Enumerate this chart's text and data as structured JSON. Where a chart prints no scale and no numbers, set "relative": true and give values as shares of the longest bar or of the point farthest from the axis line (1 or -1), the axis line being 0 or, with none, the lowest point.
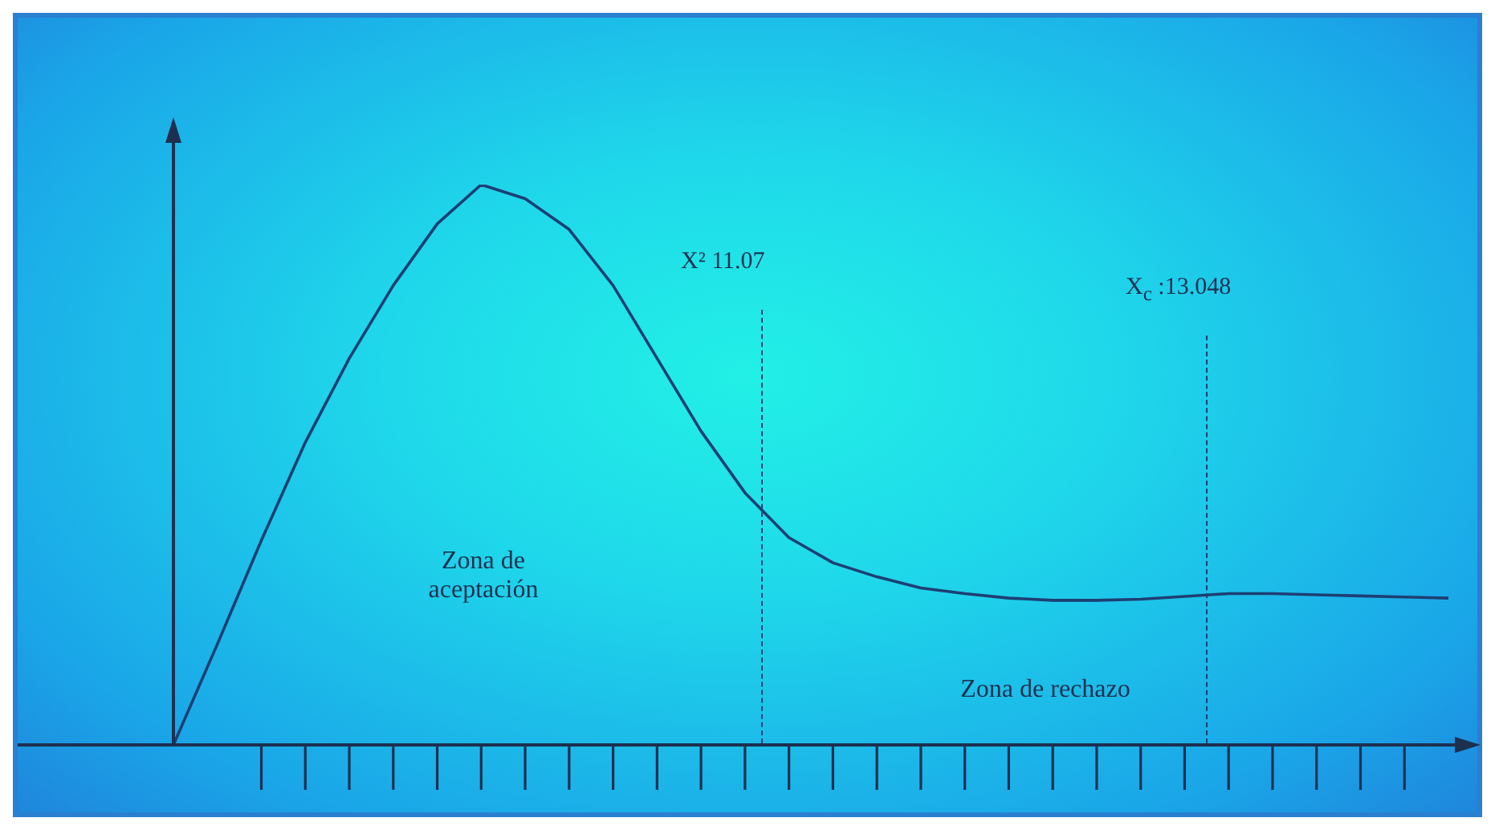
{
  "chart_data": {
    "type": "line",
    "relative": true,
    "legend": false,
    "marker": "none",
    "line_style": "solid",
    "categories": [
      null,
      null,
      null,
      null,
      null,
      null,
      null,
      null,
      null,
      null,
      null,
      null,
      null,
      null,
      null,
      null,
      null,
      null,
      null,
      null,
      null,
      null,
      null,
      null,
      null,
      null,
      null,
      null,
      null,
      null
    ],
    "series": [
      {
        "color": "#1d3f73",
        "values": [
          0,
          0.18,
          0.365,
          0.54,
          0.69,
          0.82,
          0.93,
          1,
          0.975,
          0.92,
          0.82,
          0.69,
          0.56,
          0.45,
          0.37,
          0.325,
          0.3,
          0.28,
          0.27,
          0.262,
          0.258,
          0.258,
          0.26,
          0.265,
          0.27,
          0.27,
          0.268,
          0.266,
          0.264,
          0.262
        ]
      }
    ],
    "annotations": [
      "X² 11.07",
      "X$_{c}$ :13.048",
      "Zona de aceptación",
      "Zona de rechazo"
    ]
  }
}
